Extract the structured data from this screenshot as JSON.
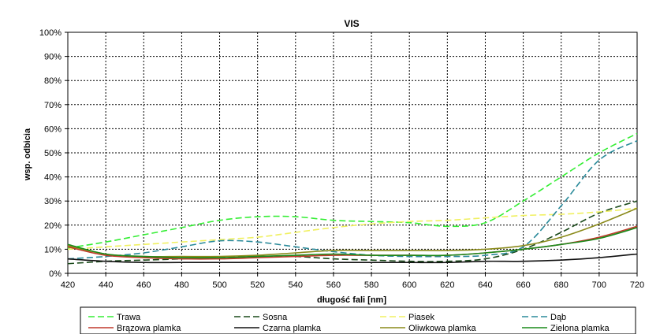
{
  "chart_data": {
    "type": "line",
    "title": "VIS",
    "xlabel": "długość fali [nm]",
    "ylabel": "wsp. odbicia",
    "xlim": [
      420,
      720
    ],
    "ylim": [
      0,
      100
    ],
    "x_ticks": [
      "420",
      "440",
      "460",
      "480",
      "500",
      "520",
      "540",
      "560",
      "580",
      "600",
      "620",
      "640",
      "660",
      "680",
      "700",
      "720"
    ],
    "y_ticks": [
      "0%",
      "10%",
      "20%",
      "30%",
      "40%",
      "50%",
      "60%",
      "70%",
      "80%",
      "90%",
      "100%"
    ],
    "grid": true,
    "legend_position": "bottom",
    "x": [
      420,
      440,
      460,
      480,
      500,
      520,
      540,
      560,
      580,
      600,
      620,
      640,
      660,
      680,
      700,
      720
    ],
    "series": [
      {
        "name": "Trawa",
        "color": "#33ee33",
        "dash": "dashed",
        "values": [
          10.5,
          13,
          16,
          19,
          22,
          23.5,
          23.5,
          22,
          21.5,
          21,
          19.5,
          21,
          30,
          40,
          50,
          58
        ]
      },
      {
        "name": "Sosna",
        "color": "#1a4a1a",
        "dash": "dashed",
        "values": [
          4,
          5,
          5.5,
          6,
          6.5,
          7,
          7,
          6,
          5.5,
          5,
          5,
          6,
          10,
          17,
          25,
          30
        ]
      },
      {
        "name": "Piasek",
        "color": "#f0f060",
        "dash": "dashed",
        "values": [
          10,
          11,
          12,
          13,
          14,
          15,
          17,
          19,
          20.5,
          21.5,
          22,
          23,
          24,
          24.5,
          25.5,
          27
        ]
      },
      {
        "name": "Dąb",
        "color": "#2a8a9a",
        "dash": "dashed",
        "values": [
          6,
          7,
          8.5,
          11,
          13.5,
          13,
          11,
          9,
          7.5,
          7,
          7,
          7.5,
          11,
          28,
          47,
          55
        ]
      },
      {
        "name": "Brązowa plamka",
        "color": "#c0392b",
        "dash": "solid",
        "values": [
          11,
          7.5,
          6.5,
          6,
          6,
          6.5,
          7,
          7.5,
          7.5,
          7.5,
          7.5,
          8.5,
          10,
          12,
          15,
          19.5
        ]
      },
      {
        "name": "Czarna plamka",
        "color": "#111111",
        "dash": "solid",
        "values": [
          6,
          5,
          4.5,
          4.5,
          4.5,
          4.5,
          4.5,
          4.5,
          4.5,
          4.5,
          4.5,
          5,
          5,
          5.5,
          6.5,
          8
        ]
      },
      {
        "name": "Oliwkowa plamka",
        "color": "#8a8a1a",
        "dash": "solid",
        "values": [
          11.5,
          8,
          7,
          7,
          7,
          7.5,
          8.5,
          9.5,
          9.5,
          9.5,
          9.5,
          10,
          11.5,
          15,
          20.5,
          27
        ]
      },
      {
        "name": "Zielona plamka",
        "color": "#1a8a1a",
        "dash": "solid",
        "values": [
          12,
          8,
          7,
          6.5,
          6.5,
          7,
          7.5,
          8,
          7.5,
          7.5,
          7.5,
          8.5,
          10,
          12,
          14.5,
          19
        ]
      }
    ]
  }
}
